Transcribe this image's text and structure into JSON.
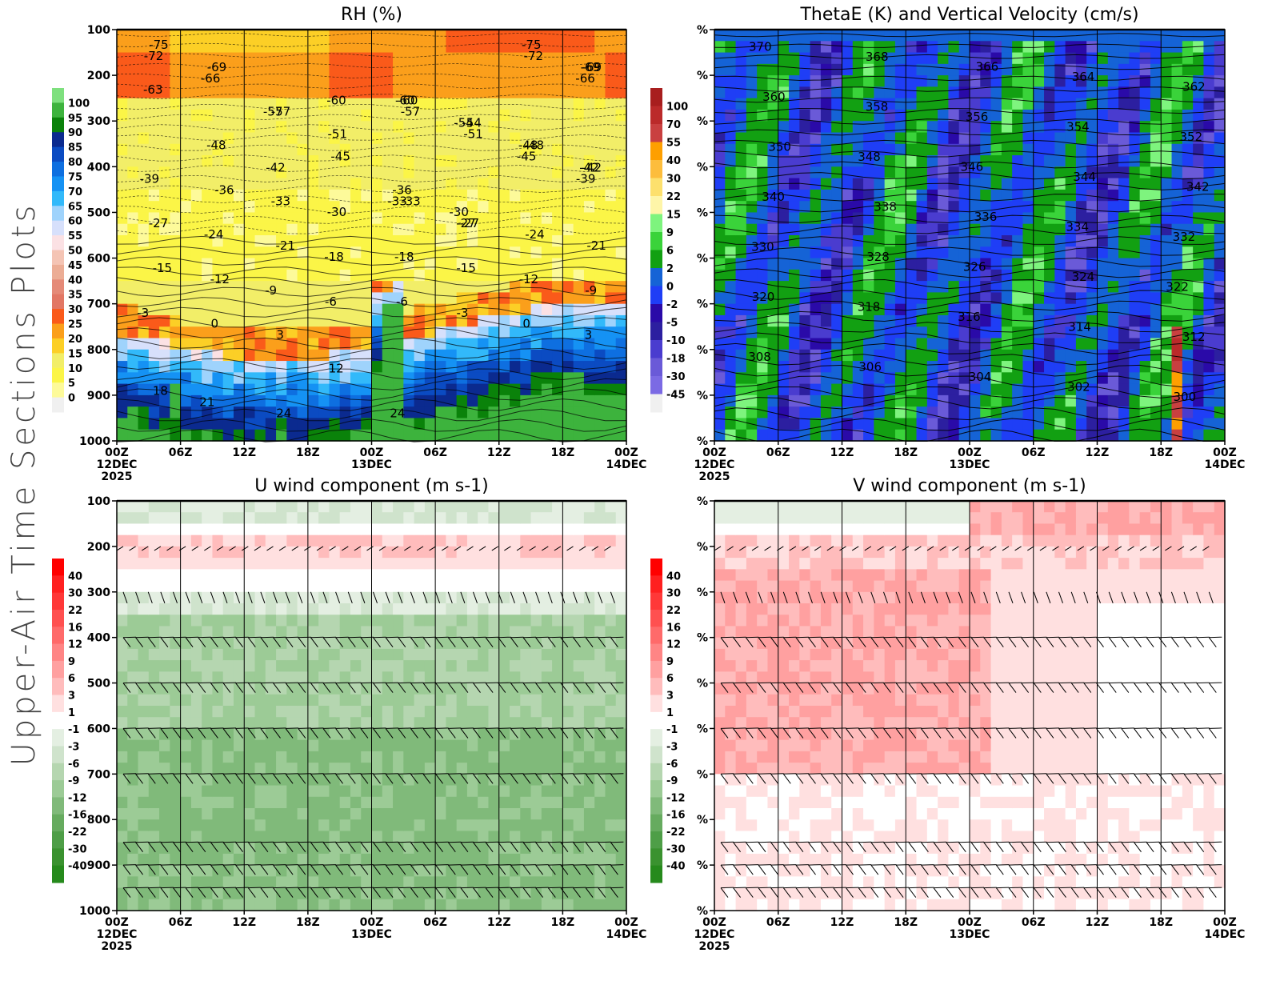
{
  "page": {
    "side_title": "Upper-Air Time Sections Plots"
  },
  "chart_data": [
    {
      "id": "rh",
      "type": "heatmap",
      "title": "RH (%)",
      "xlabel": "",
      "ylabel": "",
      "x_ticks": [
        "00Z",
        "06Z",
        "12Z",
        "18Z",
        "00Z",
        "06Z",
        "12Z",
        "18Z",
        "00Z"
      ],
      "x_date_labels": [
        {
          "tick": 0,
          "lines": [
            "12DEC",
            "2025"
          ]
        },
        {
          "tick": 4,
          "lines": [
            "13DEC"
          ]
        },
        {
          "tick": 8,
          "lines": [
            "14DEC"
          ]
        }
      ],
      "y_ticks": [
        "100",
        "200",
        "300",
        "400",
        "500",
        "600",
        "700",
        "800",
        "900",
        "1000"
      ],
      "y_range": [
        100,
        1000
      ],
      "y_inverted": true,
      "colorbar": {
        "labels": [
          "100",
          "95",
          "90",
          "85",
          "80",
          "75",
          "70",
          "65",
          "60",
          "55",
          "50",
          "45",
          "40",
          "35",
          "30",
          "25",
          "20",
          "15",
          "10",
          "5",
          "0"
        ],
        "colors": [
          "#7ee07e",
          "#3db33d",
          "#0a820a",
          "#0b2a8f",
          "#0b4bc2",
          "#0e6fe0",
          "#1592f4",
          "#32b9fa",
          "#9fd3fc",
          "#d7e0fb",
          "#fbe1e4",
          "#f4c4b4",
          "#ecad95",
          "#e58a78",
          "#e27765",
          "#fa5a1a",
          "#fb9f1b",
          "#fccf26",
          "#f2ee68",
          "#fbf547",
          "#fdfa9a",
          "#f0f0f0"
        ]
      },
      "contour_labels": [
        "-75",
        "-69",
        "-57",
        "-60",
        "-72",
        "-66",
        "-57",
        "-51",
        "-63",
        "-48",
        "-42",
        "-45",
        "-39",
        "-36",
        "-33",
        "-30",
        "-27",
        "-24",
        "-21",
        "-18",
        "-15",
        "-12",
        "-9",
        "-6",
        "-3",
        "0",
        "3",
        "12",
        "18",
        "21",
        "24",
        "-69",
        "-60",
        "-54",
        "-48",
        "-42",
        "-33",
        "-27",
        "-72",
        "-66",
        "-57",
        "-51",
        "-45",
        "-39",
        "-36",
        "-30",
        "-75",
        "-69",
        "-60",
        "-54",
        "-48",
        "-42",
        "-33",
        "-27",
        "-24",
        "-21",
        "-18",
        "-15",
        "-12",
        "-9",
        "-6",
        "-3",
        "0",
        "3",
        "24"
      ]
    },
    {
      "id": "thetae",
      "type": "heatmap",
      "title": "ThetaE (K) and Vertical Velocity (cm/s)",
      "x_ticks": [
        "00Z",
        "06Z",
        "12Z",
        "18Z",
        "00Z",
        "06Z",
        "12Z",
        "18Z",
        "00Z"
      ],
      "x_date_labels": [
        {
          "tick": 0,
          "lines": [
            "12DEC",
            "2025"
          ]
        },
        {
          "tick": 4,
          "lines": [
            "13DEC"
          ]
        },
        {
          "tick": 8,
          "lines": [
            "14DEC"
          ]
        }
      ],
      "y_ticks": [
        "%",
        "%",
        "%",
        "%",
        "%",
        "%",
        "%",
        "%",
        "%",
        "%"
      ],
      "y_range": [
        100,
        1000
      ],
      "y_inverted": true,
      "colorbar": {
        "labels": [
          "100",
          "70",
          "55",
          "40",
          "30",
          "22",
          "15",
          "9",
          "6",
          "2",
          "0",
          "-2",
          "-5",
          "-10",
          "-18",
          "-30",
          "-45"
        ],
        "colors": [
          "#a81e1e",
          "#bb2a2a",
          "#c94040",
          "#fe9f00",
          "#fdbd3c",
          "#fde06d",
          "#fef5a8",
          "#7ef47e",
          "#3ad33a",
          "#12a012",
          "#1563d6",
          "#1f3ef6",
          "#2a0aa8",
          "#2c1fa0",
          "#4a3ccf",
          "#6a5ad8",
          "#7b6ae4",
          "#f0f0f0"
        ]
      },
      "contour_labels": [
        "370",
        "368",
        "366",
        "364",
        "362",
        "360",
        "358",
        "356",
        "354",
        "352",
        "350",
        "348",
        "346",
        "344",
        "342",
        "340",
        "338",
        "336",
        "334",
        "332",
        "330",
        "328",
        "326",
        "324",
        "322",
        "320",
        "318",
        "316",
        "314",
        "312",
        "308",
        "306",
        "304",
        "302",
        "300"
      ]
    },
    {
      "id": "u_wind",
      "type": "heatmap",
      "title": "U wind component (m s-1)",
      "x_ticks": [
        "00Z",
        "06Z",
        "12Z",
        "18Z",
        "00Z",
        "06Z",
        "12Z",
        "18Z",
        "00Z"
      ],
      "x_date_labels": [
        {
          "tick": 0,
          "lines": [
            "12DEC",
            "2025"
          ]
        },
        {
          "tick": 4,
          "lines": [
            "13DEC"
          ]
        },
        {
          "tick": 8,
          "lines": [
            "14DEC"
          ]
        }
      ],
      "y_ticks": [
        "100",
        "200",
        "300",
        "400",
        "500",
        "600",
        "700",
        "800",
        "900",
        "1000"
      ],
      "y_range": [
        100,
        1000
      ],
      "y_inverted": true,
      "barb_levels": [
        200,
        300,
        400,
        500,
        600,
        700,
        850,
        900,
        950
      ],
      "colorbar": {
        "labels": [
          "40",
          "30",
          "22",
          "16",
          "12",
          "9",
          "6",
          "3",
          "1",
          "-1",
          "-3",
          "-6",
          "-9",
          "-12",
          "-16",
          "-22",
          "-30",
          "-40"
        ],
        "colors": [
          "#ff0000",
          "#ff2020",
          "#ff3838",
          "#ff5050",
          "#ff6a6a",
          "#ff8585",
          "#ffa0a0",
          "#ffbcbc",
          "#ffe0e0",
          "#ffffff",
          "#e4efe2",
          "#cfe3cc",
          "#b5d6b0",
          "#9ccb96",
          "#80ba7a",
          "#66ab5f",
          "#4e9e47",
          "#3a922f",
          "#268a1c"
        ]
      }
    },
    {
      "id": "v_wind",
      "type": "heatmap",
      "title": "V wind component (m s-1)",
      "x_ticks": [
        "00Z",
        "06Z",
        "12Z",
        "18Z",
        "00Z",
        "06Z",
        "12Z",
        "18Z",
        "00Z"
      ],
      "x_date_labels": [
        {
          "tick": 0,
          "lines": [
            "12DEC",
            "2025"
          ]
        },
        {
          "tick": 4,
          "lines": [
            "13DEC"
          ]
        },
        {
          "tick": 8,
          "lines": [
            "14DEC"
          ]
        }
      ],
      "y_ticks": [
        "%",
        "%",
        "%",
        "%",
        "%",
        "%",
        "%",
        "%",
        "%",
        "%"
      ],
      "y_range": [
        100,
        1000
      ],
      "y_inverted": true,
      "barb_levels": [
        200,
        300,
        400,
        500,
        600,
        700,
        850,
        900,
        950
      ],
      "colorbar": {
        "labels": [
          "40",
          "30",
          "22",
          "16",
          "12",
          "9",
          "6",
          "3",
          "1",
          "-1",
          "-3",
          "-6",
          "-9",
          "-12",
          "-16",
          "-22",
          "-30",
          "-40"
        ],
        "colors": [
          "#ff0000",
          "#ff2020",
          "#ff3838",
          "#ff5050",
          "#ff6a6a",
          "#ff8585",
          "#ffa0a0",
          "#ffbcbc",
          "#ffe0e0",
          "#ffffff",
          "#e4efe2",
          "#cfe3cc",
          "#b5d6b0",
          "#9ccb96",
          "#80ba7a",
          "#66ab5f",
          "#4e9e47",
          "#3a922f",
          "#268a1c"
        ]
      }
    }
  ]
}
